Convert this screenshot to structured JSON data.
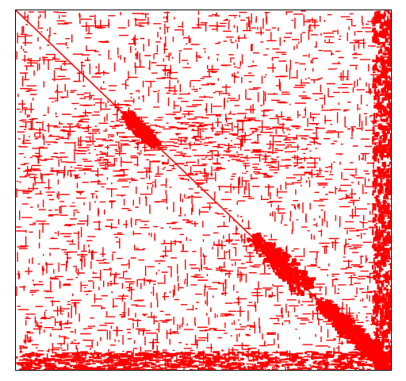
{
  "chart_data": {
    "type": "spy",
    "color": "#ff0000"
  }
}
